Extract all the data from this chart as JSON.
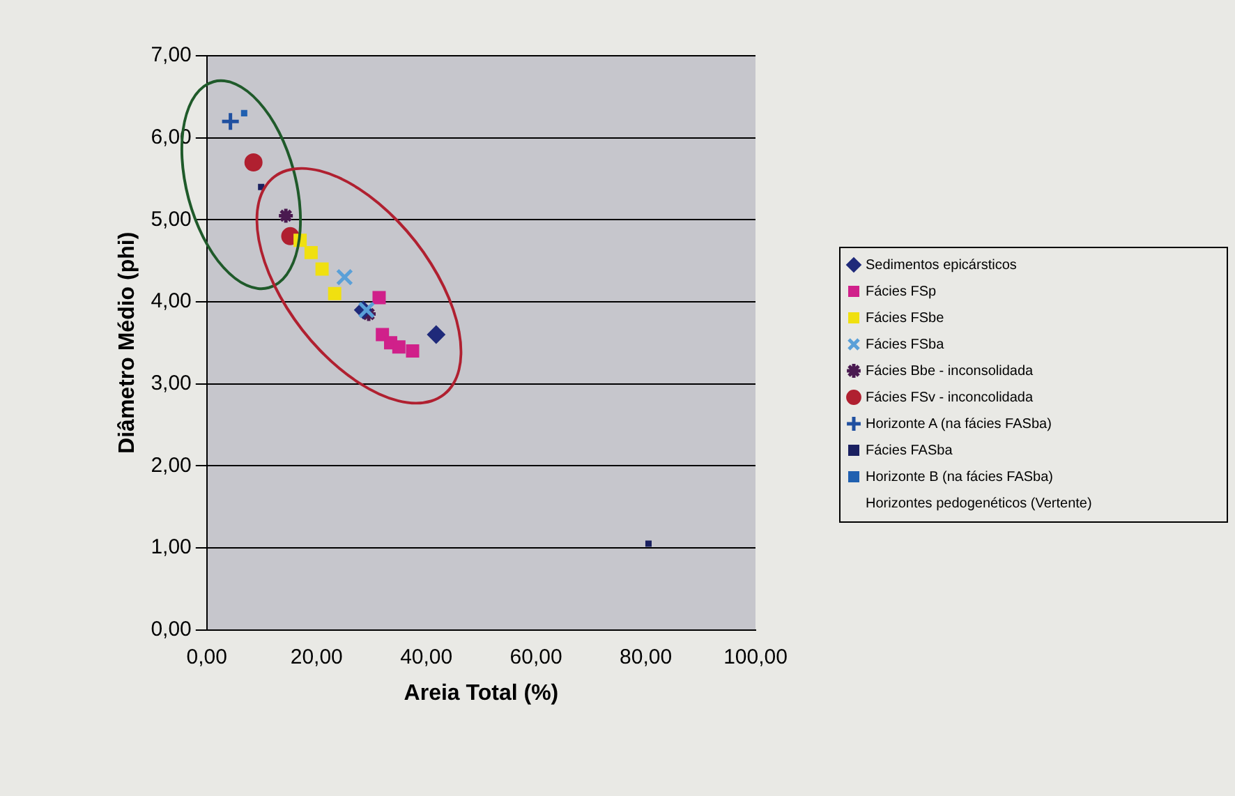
{
  "chart_data": {
    "type": "scatter",
    "xlabel": "Areia Total (%)",
    "ylabel": "Diâmetro Médio (phi)",
    "xlim": [
      0,
      100
    ],
    "ylim": [
      0,
      7
    ],
    "xticks": [
      {
        "value": 0,
        "label": "0,00"
      },
      {
        "value": 20,
        "label": "20,00"
      },
      {
        "value": 40,
        "label": "40,00"
      },
      {
        "value": 60,
        "label": "60,00"
      },
      {
        "value": 80,
        "label": "80,00"
      },
      {
        "value": 100,
        "label": "100,00"
      }
    ],
    "yticks": [
      {
        "value": 0,
        "label": "0,00"
      },
      {
        "value": 1,
        "label": "1,00"
      },
      {
        "value": 2,
        "label": "2,00"
      },
      {
        "value": 3,
        "label": "3,00"
      },
      {
        "value": 4,
        "label": "4,00"
      },
      {
        "value": 5,
        "label": "5,00"
      },
      {
        "value": 6,
        "label": "6,00"
      },
      {
        "value": 7,
        "label": "7,00"
      }
    ],
    "grid": "y",
    "legend": "right",
    "series": [
      {
        "name": "Sedimentos epicársticos",
        "color": "#1f2a7a",
        "marker": "diamond",
        "x": [
          28.5,
          41.8
        ],
        "values": [
          3.9,
          3.6
        ]
      },
      {
        "name": "Fácies FSp",
        "color": "#d0208a",
        "marker": "square",
        "x": [
          31.4,
          32,
          33.5,
          35,
          37.5
        ],
        "values": [
          4.05,
          3.6,
          3.5,
          3.45,
          3.4
        ]
      },
      {
        "name": "Fácies FSbe",
        "color": "#f0e010",
        "marker": "square",
        "x": [
          17,
          19,
          21,
          23.3
        ],
        "values": [
          4.75,
          4.6,
          4.4,
          4.1
        ]
      },
      {
        "name": "Fácies FSba",
        "color": "#5aa0d8",
        "marker": "x",
        "x": [
          25.1,
          29.1
        ],
        "values": [
          4.3,
          3.9
        ]
      },
      {
        "name": "Fácies Bbe - inconsolidada",
        "color": "#4a1a50",
        "marker": "cross",
        "x": [
          14.4,
          29.5
        ],
        "values": [
          5.05,
          3.85
        ]
      },
      {
        "name": "Fácies FSv - inconcolidada",
        "color": "#b02030",
        "marker": "circle",
        "x": [
          15.2,
          8.5
        ],
        "values": [
          4.8,
          5.7
        ]
      },
      {
        "name": "Horizonte A (na fácies FASba)",
        "color": "#2050a0",
        "marker": "cross",
        "x": [
          4.3
        ],
        "values": [
          6.2
        ]
      },
      {
        "name": "Fácies FASba",
        "color": "#1a2060",
        "marker": "square",
        "x": [
          9.9,
          80.5
        ],
        "values": [
          5.4,
          1.05
        ]
      },
      {
        "name": "Horizonte B (na fácies FASba)",
        "color": "#2060b0",
        "marker": "square",
        "x": [
          6.8
        ],
        "values": [
          6.3
        ]
      },
      {
        "name": "Horizontes pedogenéticos (Vertente)",
        "marker": "none"
      }
    ]
  }
}
